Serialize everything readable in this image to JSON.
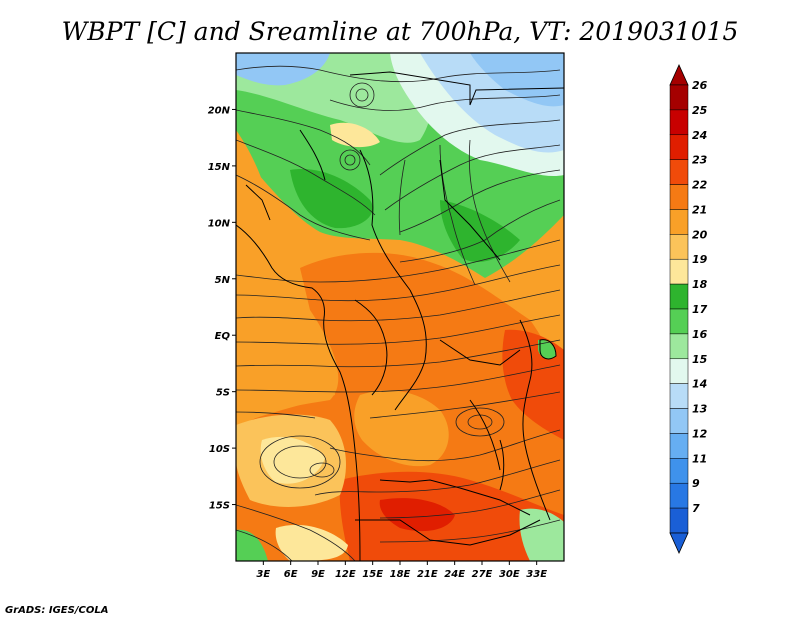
{
  "title": "WBPT [C] and Sreamline at 700hPa, VT: 2019031015",
  "footer": "GrADS: IGES/COLA",
  "map": {
    "lon_range": [
      0,
      36
    ],
    "lat_range": [
      -20,
      25
    ],
    "lat_ticks": [
      {
        "value": 20,
        "label": "20N"
      },
      {
        "value": 15,
        "label": "15N"
      },
      {
        "value": 10,
        "label": "10N"
      },
      {
        "value": 5,
        "label": "5N"
      },
      {
        "value": 0,
        "label": "EQ"
      },
      {
        "value": -5,
        "label": "5S"
      },
      {
        "value": -10,
        "label": "10S"
      },
      {
        "value": -15,
        "label": "15S"
      }
    ],
    "lon_ticks": [
      {
        "value": 3,
        "label": "3E"
      },
      {
        "value": 6,
        "label": "6E"
      },
      {
        "value": 9,
        "label": "9E"
      },
      {
        "value": 12,
        "label": "12E"
      },
      {
        "value": 15,
        "label": "15E"
      },
      {
        "value": 18,
        "label": "18E"
      },
      {
        "value": 21,
        "label": "21E"
      },
      {
        "value": 24,
        "label": "24E"
      },
      {
        "value": 27,
        "label": "27E"
      },
      {
        "value": 30,
        "label": "30E"
      },
      {
        "value": 33,
        "label": "33E"
      }
    ]
  },
  "colorbar": {
    "levels": [
      {
        "label": "26",
        "color": "#a50000"
      },
      {
        "label": "25",
        "color": "#c80000"
      },
      {
        "label": "24",
        "color": "#e01e00"
      },
      {
        "label": "23",
        "color": "#f04b0a"
      },
      {
        "label": "22",
        "color": "#f57a14"
      },
      {
        "label": "21",
        "color": "#f9a028"
      },
      {
        "label": "20",
        "color": "#fbc35a"
      },
      {
        "label": "19",
        "color": "#fde79a"
      },
      {
        "label": "18",
        "color": "#2eb42e"
      },
      {
        "label": "17",
        "color": "#55cf55"
      },
      {
        "label": "16",
        "color": "#9de89d"
      },
      {
        "label": "15",
        "color": "#e2f8ee"
      },
      {
        "label": "14",
        "color": "#b8dcf7"
      },
      {
        "label": "13",
        "color": "#92c7f5"
      },
      {
        "label": "12",
        "color": "#66aef2"
      },
      {
        "label": "11",
        "color": "#3f92ec"
      },
      {
        "label": "9",
        "color": "#2878e4"
      },
      {
        "label": "7",
        "color": "#1a5fd6"
      }
    ],
    "top_color": "#a50000",
    "bottom_color": "#1a5fd6"
  }
}
